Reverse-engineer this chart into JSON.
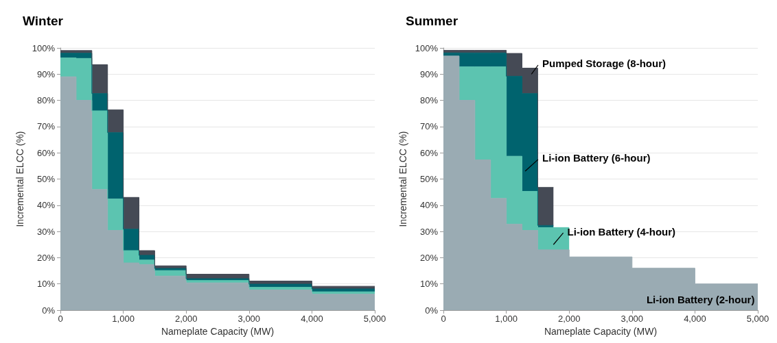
{
  "chart_data": [
    {
      "type": "area",
      "title": "Winter",
      "xlabel": "Nameplate Capacity (MW)",
      "ylabel": "Incremental ELCC (%)",
      "stacked": true,
      "grid": "y",
      "legend": false,
      "x": [
        0,
        250,
        250,
        500,
        500,
        750,
        750,
        1000,
        1000,
        1250,
        1250,
        1500,
        1500,
        2000,
        2000,
        3000,
        3000,
        4000,
        4000,
        5000
      ],
      "series": [
        {
          "color": "#9aabb3",
          "values": [
            89,
            89,
            80,
            80,
            46,
            46,
            30.4,
            30.4,
            18,
            18,
            17.4,
            17.4,
            13,
            13,
            10.4,
            10.4,
            7.7,
            7.7,
            6.1,
            6.1
          ]
        },
        {
          "color": "#5cc4b0",
          "values": [
            7.2,
            7.2,
            16,
            16,
            30,
            30,
            12,
            12,
            4.7,
            4.7,
            1.7,
            1.7,
            2.1,
            2.1,
            0.9,
            0.9,
            1,
            1,
            0.9,
            0.9
          ]
        },
        {
          "color": "#00636e",
          "values": [
            1.8,
            1.8,
            2,
            2,
            6.6,
            6.6,
            25.3,
            25.3,
            8.2,
            8.2,
            1.8,
            1.8,
            0.8,
            0.8,
            0.7,
            0.7,
            1.2,
            1.2,
            1.1,
            1.1
          ]
        },
        {
          "color": "#454a55",
          "values": [
            1,
            1,
            1,
            1,
            11,
            11,
            8.7,
            8.7,
            12.1,
            12.1,
            1.8,
            1.8,
            1,
            1,
            1.7,
            1.7,
            1.2,
            1.2,
            1,
            1
          ]
        }
      ],
      "xlim": [
        0,
        5000
      ],
      "xticks": [
        0,
        {
          "value": 1000,
          "label": "1,000"
        },
        {
          "value": 2000,
          "label": "2,000"
        },
        {
          "value": 3000,
          "label": "3,000"
        },
        {
          "value": 4000,
          "label": "4,000"
        },
        {
          "value": 5000,
          "label": "5,000"
        }
      ],
      "ylim": [
        0,
        100
      ],
      "yticks": [
        {
          "value": 0,
          "label": "0%"
        },
        {
          "value": 10,
          "label": "10%"
        },
        {
          "value": 20,
          "label": "20%"
        },
        {
          "value": 30,
          "label": "30%"
        },
        {
          "value": 40,
          "label": "40%"
        },
        {
          "value": 50,
          "label": "50%"
        },
        {
          "value": 60,
          "label": "60%"
        },
        {
          "value": 70,
          "label": "70%"
        },
        {
          "value": 80,
          "label": "80%"
        },
        {
          "value": 90,
          "label": "90%"
        },
        {
          "value": 100,
          "label": "100%"
        }
      ]
    },
    {
      "type": "area",
      "title": "Summer",
      "xlabel": "Nameplate Capacity (MW)",
      "ylabel": "Incremental ELCC (%)",
      "stacked": true,
      "grid": "y",
      "legend": false,
      "x": [
        0,
        250,
        250,
        500,
        500,
        750,
        750,
        1000,
        1000,
        1250,
        1250,
        1500,
        1500,
        1750,
        1750,
        2000,
        2000,
        3000,
        3000,
        4000,
        4000,
        5000
      ],
      "series": [
        {
          "name": "Li-ion Battery (2-hour)",
          "color": "#9aabb3",
          "values": [
            96.9,
            96.9,
            80,
            80,
            57.3,
            57.3,
            42.6,
            42.6,
            32.8,
            32.8,
            30.4,
            30.4,
            23,
            23,
            23,
            23,
            20.3,
            20.3,
            16,
            16,
            10,
            10
          ]
        },
        {
          "name": "Li-ion Battery (4-hour)",
          "color": "#5cc4b0",
          "values": [
            null,
            null,
            12.8,
            12.8,
            35.5,
            35.5,
            50.2,
            50.2,
            25.9,
            25.9,
            14.9,
            14.9,
            8.5,
            8.5,
            8.5,
            8.5,
            null,
            null,
            null,
            null,
            null,
            null
          ]
        },
        {
          "name": "Li-ion Battery (6-hour)",
          "color": "#00636e",
          "values": [
            1.2,
            1.2,
            5.3,
            5.3,
            5.3,
            5.3,
            5.3,
            5.3,
            30.5,
            30.5,
            37.3,
            37.3,
            0.8,
            0.8,
            null,
            null,
            null,
            null,
            null,
            null,
            null,
            null
          ]
        },
        {
          "name": "Pumped Storage (8-hour)",
          "color": "#454a55",
          "values": [
            1,
            1,
            1,
            1,
            1,
            1,
            1,
            1,
            8.7,
            8.7,
            9.7,
            9.7,
            14.5,
            14.5,
            null,
            null,
            null,
            null,
            null,
            null,
            null,
            null
          ]
        }
      ],
      "xlim": [
        0,
        5000
      ],
      "xticks": [
        0,
        {
          "value": 1000,
          "label": "1,000"
        },
        {
          "value": 2000,
          "label": "2,000"
        },
        {
          "value": 3000,
          "label": "3,000"
        },
        {
          "value": 4000,
          "label": "4,000"
        },
        {
          "value": 5000,
          "label": "5,000"
        }
      ],
      "ylim": [
        0,
        100
      ],
      "yticks": [
        {
          "value": 0,
          "label": "0%"
        },
        {
          "value": 10,
          "label": "10%"
        },
        {
          "value": 20,
          "label": "20%"
        },
        {
          "value": 30,
          "label": "30%"
        },
        {
          "value": 40,
          "label": "40%"
        },
        {
          "value": 50,
          "label": "50%"
        },
        {
          "value": 60,
          "label": "60%"
        },
        {
          "value": 70,
          "label": "70%"
        },
        {
          "value": 80,
          "label": "80%"
        },
        {
          "value": 90,
          "label": "90%"
        },
        {
          "value": 100,
          "label": "100%"
        }
      ]
    }
  ]
}
